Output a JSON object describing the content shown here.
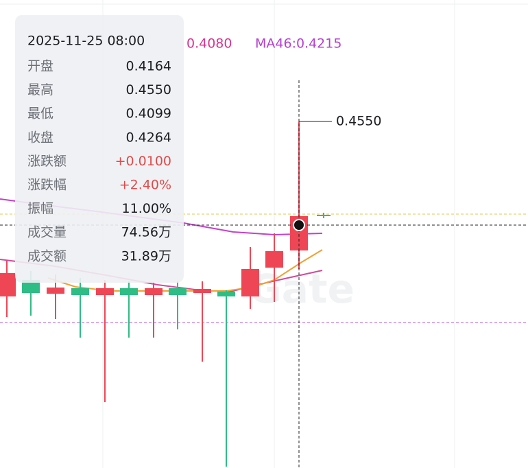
{
  "tooltip": {
    "datetime": "2025-11-25 08:00",
    "rows": [
      {
        "label": "开盘",
        "value": "0.4164"
      },
      {
        "label": "最高",
        "value": "0.4550"
      },
      {
        "label": "最低",
        "value": "0.4099"
      },
      {
        "label": "收盘",
        "value": "0.4264"
      },
      {
        "label": "涨跌额",
        "value": "+0.0100"
      },
      {
        "label": "涨跌幅",
        "value": "+2.40%"
      },
      {
        "label": "振幅",
        "value": "11.00%"
      },
      {
        "label": "成交量",
        "value": "74.56万"
      },
      {
        "label": "成交额",
        "value": "31.89万"
      }
    ]
  },
  "ma_labels": [
    "0.4080",
    "MA46:0.4215"
  ],
  "high_marker": "0.4550",
  "watermark": "Gate"
}
